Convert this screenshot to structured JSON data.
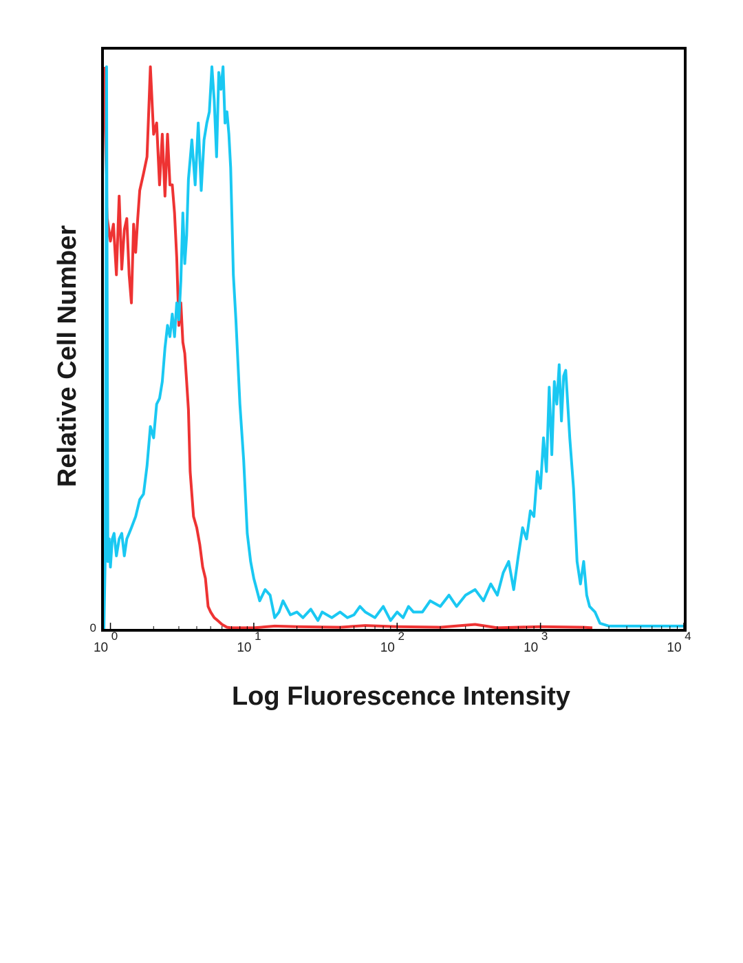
{
  "chart_data": {
    "type": "line",
    "title": "",
    "xlabel": "Log Fluorescence Intensity",
    "ylabel": "Relative Cell Number",
    "x_scale": "log",
    "xlim": [
      0.9,
      10000
    ],
    "ylim": [
      0,
      100
    ],
    "y_tick_labels": [
      "0"
    ],
    "x_ticks": [
      {
        "base": "10",
        "exp": "0",
        "value": 1
      },
      {
        "base": "10",
        "exp": "1",
        "value": 10
      },
      {
        "base": "10",
        "exp": "2",
        "value": 100
      },
      {
        "base": "10",
        "exp": "3",
        "value": 1000
      },
      {
        "base": "10",
        "exp": "4",
        "value": 10000
      }
    ],
    "grid": false,
    "legend": "none",
    "series": [
      {
        "color": "#ee3333",
        "x": [
          0.9,
          0.95,
          1.0,
          1.05,
          1.1,
          1.15,
          1.2,
          1.25,
          1.3,
          1.35,
          1.4,
          1.45,
          1.5,
          1.55,
          1.6,
          1.7,
          1.8,
          1.9,
          2.0,
          2.1,
          2.2,
          2.3,
          2.4,
          2.5,
          2.6,
          2.7,
          2.8,
          2.9,
          3.0,
          3.1,
          3.2,
          3.3,
          3.4,
          3.5,
          3.6,
          3.8,
          4.0,
          4.2,
          4.4,
          4.6,
          4.8,
          5.0,
          5.3,
          5.6,
          6.0,
          6.5,
          7.0,
          7.5,
          8.0,
          10,
          14,
          20,
          40,
          60,
          100,
          200,
          350,
          500,
          1000,
          2000,
          2300
        ],
        "y": [
          100,
          73,
          69,
          72,
          63,
          77,
          64,
          71,
          73,
          63,
          58,
          72,
          67,
          73,
          78,
          81,
          84,
          100,
          88,
          90,
          79,
          88,
          77,
          88,
          79,
          79,
          74,
          66,
          54,
          58,
          51,
          49,
          44,
          39,
          28,
          20,
          18,
          15,
          11,
          9,
          4,
          3,
          2,
          1.5,
          0.8,
          0.3,
          0.2,
          0.2,
          0.2,
          0.2,
          0.5,
          0.4,
          0.3,
          0.6,
          0.4,
          0.3,
          0.8,
          0.2,
          0.4,
          0.3,
          0.2
        ]
      },
      {
        "color": "#1ac8f2",
        "x": [
          0.9,
          0.92,
          0.94,
          0.96,
          0.98,
          1.0,
          1.03,
          1.06,
          1.1,
          1.15,
          1.2,
          1.25,
          1.3,
          1.35,
          1.4,
          1.5,
          1.6,
          1.7,
          1.8,
          1.9,
          2.0,
          2.1,
          2.2,
          2.3,
          2.4,
          2.5,
          2.6,
          2.7,
          2.8,
          2.9,
          3.0,
          3.1,
          3.2,
          3.3,
          3.4,
          3.5,
          3.7,
          3.9,
          4.1,
          4.3,
          4.5,
          4.7,
          4.9,
          5.1,
          5.3,
          5.5,
          5.7,
          5.9,
          6.1,
          6.3,
          6.5,
          6.7,
          6.9,
          7.2,
          7.5,
          8.0,
          8.5,
          9.0,
          9.5,
          10,
          11,
          12,
          13,
          14,
          15,
          16,
          18,
          20,
          22,
          25,
          28,
          30,
          35,
          40,
          45,
          50,
          55,
          60,
          70,
          80,
          90,
          100,
          110,
          120,
          130,
          150,
          170,
          200,
          230,
          260,
          300,
          350,
          400,
          450,
          500,
          550,
          600,
          650,
          700,
          750,
          800,
          850,
          900,
          950,
          1000,
          1050,
          1100,
          1150,
          1200,
          1250,
          1300,
          1350,
          1400,
          1450,
          1500,
          1600,
          1700,
          1800,
          1900,
          2000,
          2100,
          2200,
          2400,
          2600,
          3000,
          4000,
          6000,
          10000
        ],
        "y": [
          0,
          13,
          100,
          12,
          16,
          11,
          16,
          17,
          13,
          16,
          17,
          13,
          16,
          17,
          18,
          20,
          23,
          24,
          29,
          36,
          34,
          40,
          41,
          44,
          50,
          54,
          52,
          56,
          52,
          58,
          55,
          62,
          74,
          65,
          70,
          80,
          87,
          79,
          90,
          78,
          87,
          90,
          92,
          100,
          94,
          84,
          99,
          96,
          100,
          90,
          92,
          88,
          82,
          63,
          55,
          40,
          30,
          17,
          12,
          9,
          5,
          7,
          6,
          2,
          3,
          5,
          2.5,
          3,
          2,
          3.5,
          1.5,
          3,
          2,
          3,
          2,
          2.5,
          4,
          3,
          2,
          4,
          1.5,
          3,
          2,
          4,
          3,
          3,
          5,
          4,
          6,
          4,
          6,
          7,
          5,
          8,
          6,
          10,
          12,
          7,
          13,
          18,
          16,
          21,
          20,
          28,
          25,
          34,
          28,
          43,
          31,
          44,
          40,
          47,
          37,
          45,
          46,
          34,
          25,
          12,
          8,
          12,
          6,
          4,
          3,
          1,
          0.5,
          0.5,
          0.5,
          0.5
        ]
      }
    ]
  }
}
